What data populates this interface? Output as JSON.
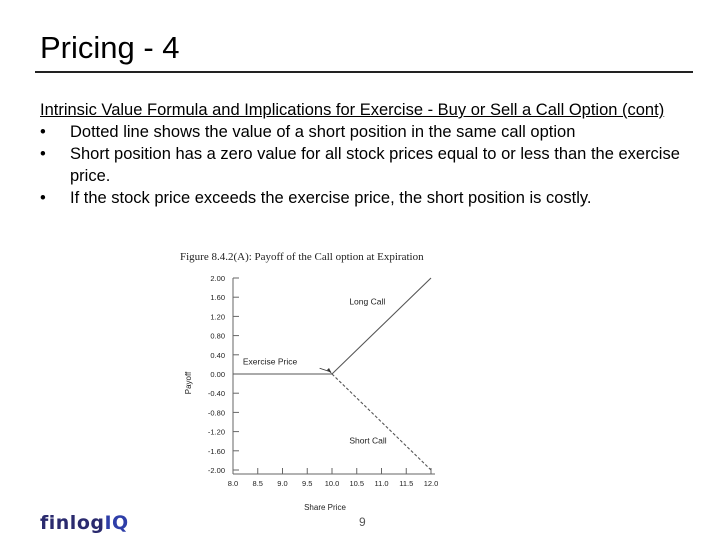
{
  "slide": {
    "title": "Pricing - 4",
    "subheading": "Intrinsic Value Formula and Implications for Exercise - Buy or Sell a Call Option (cont)",
    "bullets": [
      "Dotted line shows the value of a short position in the same call option",
      "Short position has a zero value for all stock prices equal to or less than the exercise price.",
      "If the stock price exceeds the exercise price, the short position is costly."
    ],
    "bullet_symbol": "•",
    "page_number": "9"
  },
  "logo": {
    "part1": "finlog",
    "part2": "IQ"
  },
  "chart_data": {
    "type": "line",
    "title": "Figure 8.4.2(A): Payoff of the Call option at Expiration",
    "xlabel": "Share Price",
    "ylabel": "Payoff",
    "x_ticks": [
      "8.0",
      "8.5",
      "9.0",
      "9.5",
      "10.0",
      "10.5",
      "11.0",
      "11.5",
      "12.0"
    ],
    "y_ticks": [
      "2.00",
      "1.60",
      "1.20",
      "0.80",
      "0.40",
      "0.00",
      "-0.40",
      "-0.80",
      "-1.20",
      "-1.60",
      "-2.00"
    ],
    "xlim": [
      8.0,
      12.0
    ],
    "ylim": [
      -2.0,
      2.0
    ],
    "exercise_price": 10.0,
    "series": [
      {
        "name": "Long Call",
        "style": "solid",
        "x": [
          8.0,
          10.0,
          12.0
        ],
        "y": [
          0.0,
          0.0,
          2.0
        ]
      },
      {
        "name": "Short Call",
        "style": "dashed",
        "x": [
          10.0,
          12.0
        ],
        "y": [
          0.0,
          -2.0
        ]
      }
    ],
    "annotations": {
      "exercise": "Exercise Price"
    }
  }
}
